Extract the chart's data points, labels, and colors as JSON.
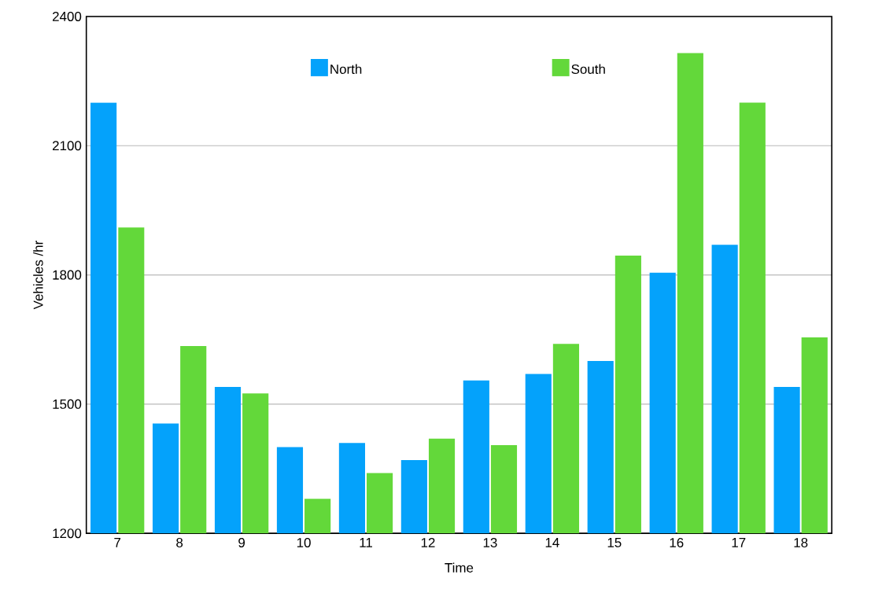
{
  "chart_data": {
    "type": "bar",
    "xlabel": "Time",
    "ylabel": "Vehicles /hr",
    "categories": [
      "7",
      "8",
      "9",
      "10",
      "11",
      "12",
      "13",
      "14",
      "15",
      "16",
      "17",
      "18"
    ],
    "series": [
      {
        "name": "North",
        "color": "#04a2fb",
        "values": [
          2200,
          1455,
          1540,
          1400,
          1410,
          1370,
          1555,
          1570,
          1600,
          1805,
          1870,
          1540
        ]
      },
      {
        "name": "South",
        "color": "#63d83a",
        "values": [
          1910,
          1635,
          1525,
          1280,
          1340,
          1420,
          1405,
          1640,
          1845,
          2315,
          2200,
          1655
        ]
      }
    ],
    "ylim": [
      1200,
      2400
    ],
    "yticks": [
      1200,
      1500,
      1800,
      2100,
      2400
    ],
    "grid": "y",
    "legend": "top"
  }
}
